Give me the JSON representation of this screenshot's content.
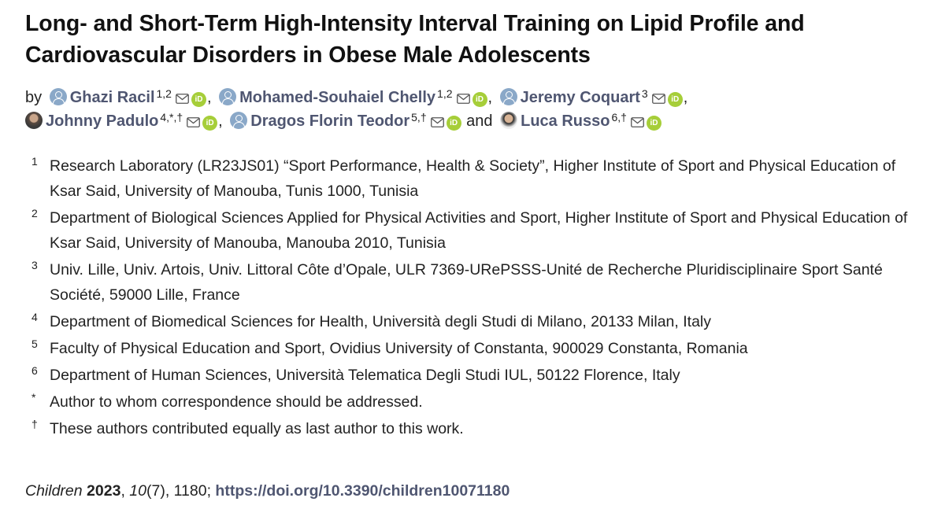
{
  "article": {
    "title": "Long- and Short-Term High-Intensity Interval Training on Lipid Profile and Cardiovascular Disorders in Obese Male Adolescents",
    "by_label": "by",
    "and_label": "and",
    "authors": [
      {
        "name": "Ghazi Racil",
        "affil": "1,2",
        "sep": ",",
        "avatar": "person-placeholder-icon"
      },
      {
        "name": "Mohamed-Souhaiel Chelly",
        "affil": "1,2",
        "sep": ",",
        "avatar": "person-placeholder-icon"
      },
      {
        "name": "Jeremy Coquart",
        "affil": "3",
        "sep": ",",
        "avatar": "person-placeholder-icon"
      },
      {
        "name": "Johnny Padulo",
        "affil": "4,*,†",
        "sep": ",",
        "avatar": "author-photo"
      },
      {
        "name": "Dragos Florin Teodor",
        "affil": "5,†",
        "sep": "",
        "avatar": "person-placeholder-icon"
      },
      {
        "name": "Luca Russo",
        "affil": "6,†",
        "sep": "",
        "avatar": "author-photo"
      }
    ],
    "affiliations": [
      {
        "mark": "1",
        "text": "Research Laboratory (LR23JS01) “Sport Performance, Health & Society”, Higher Institute of Sport and Physical Education of Ksar Said, University of Manouba, Tunis 1000, Tunisia"
      },
      {
        "mark": "2",
        "text": "Department of Biological Sciences Applied for Physical Activities and Sport, Higher Institute of Sport and Physical Education of Ksar Said, University of Manouba, Manouba 2010, Tunisia"
      },
      {
        "mark": "3",
        "text": "Univ. Lille, Univ. Artois, Univ. Littoral Côte d’Opale, ULR 7369-URePSSS-Unité de Recherche Pluridisciplinaire Sport Santé Société, 59000 Lille, France"
      },
      {
        "mark": "4",
        "text": "Department of Biomedical Sciences for Health, Università degli Studi di Milano, 20133 Milan, Italy"
      },
      {
        "mark": "5",
        "text": "Faculty of Physical Education and Sport, Ovidius University of Constanta, 900029 Constanta, Romania"
      },
      {
        "mark": "6",
        "text": "Department of Human Sciences, Università Telematica Degli Studi IUL, 50122 Florence, Italy"
      },
      {
        "mark": "*",
        "text": "Author to whom correspondence should be addressed."
      },
      {
        "mark": "†",
        "text": "These authors contributed equally as last author to this work."
      }
    ],
    "citation": {
      "journal": "Children",
      "year": "2023",
      "volume": "10",
      "issue": "(7), 1180; ",
      "doi": "https://doi.org/10.3390/children10071180"
    },
    "colors": {
      "author_link": "#4f5671",
      "orcid": "#a6ce39",
      "avatar": "#8aa8c8"
    }
  }
}
